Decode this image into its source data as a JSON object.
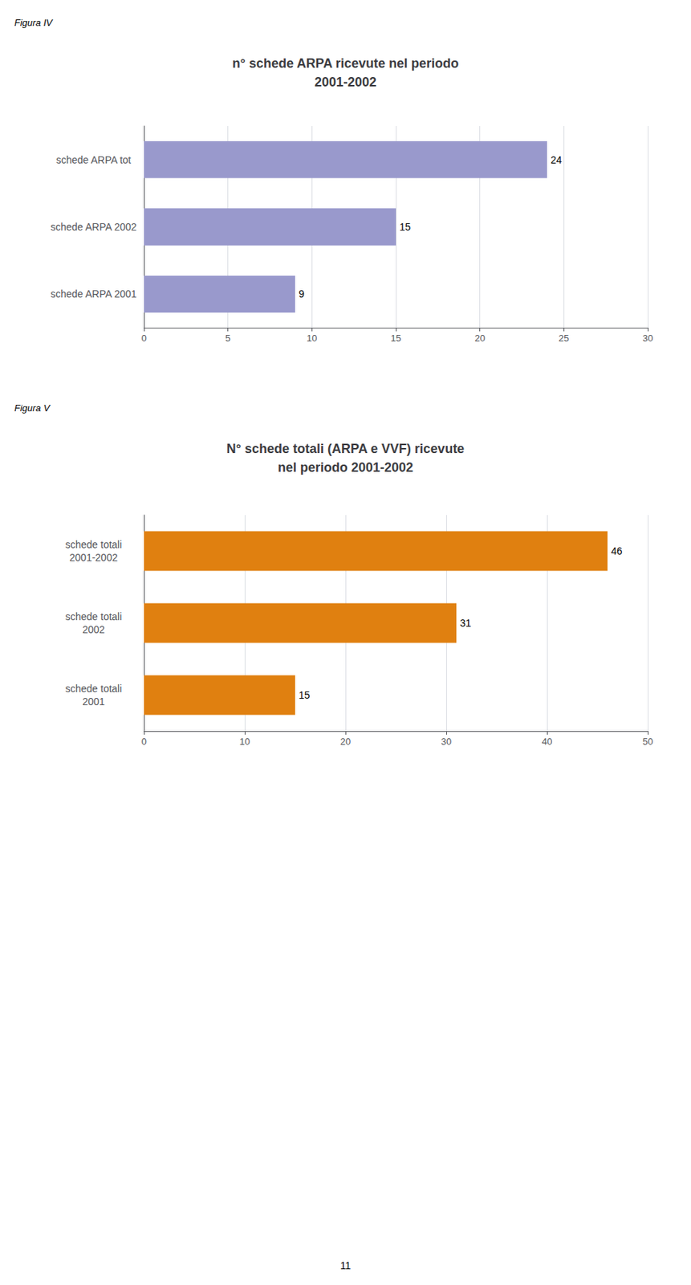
{
  "chart_data": [
    {
      "type": "bar",
      "orientation": "horizontal",
      "title": "n° schede ARPA ricevute nel periodo\n2001-2002",
      "annotations": [
        "Figura IV"
      ],
      "categories": [
        "schede ARPA tot",
        "schede ARPA 2002",
        "schede ARPA 2001"
      ],
      "values": [
        24,
        15,
        9
      ],
      "color": "#9999cc",
      "xlim": [
        0,
        30
      ],
      "xticks": [
        0,
        5,
        10,
        15,
        20,
        25,
        30
      ],
      "grid": true,
      "data_labels": true
    },
    {
      "type": "bar",
      "orientation": "horizontal",
      "title": "N° schede totali (ARPA e VVF) ricevute\nnel periodo 2001-2002",
      "annotations": [
        "Figura V",
        "11"
      ],
      "categories": [
        "schede totali\n2001-2002",
        "schede totali\n2002",
        "schede totali\n2001"
      ],
      "values": [
        46,
        31,
        15
      ],
      "color": "#e08010",
      "xlim": [
        0,
        50
      ],
      "xticks": [
        0,
        10,
        20,
        30,
        40,
        50
      ],
      "grid": true,
      "data_labels": true
    }
  ]
}
